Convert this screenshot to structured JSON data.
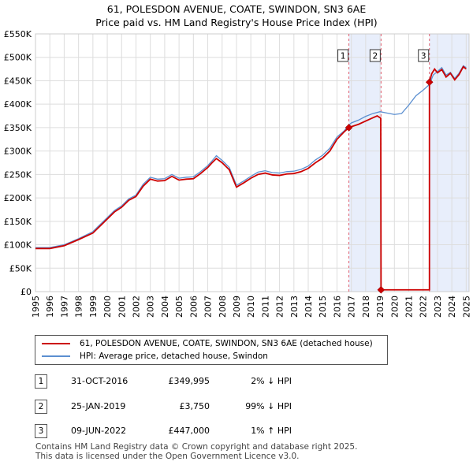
{
  "title_line1": "61, POLESDON AVENUE, COATE, SWINDON, SN3 6AE",
  "title_line2": "Price paid vs. HM Land Registry's House Price Index (HPI)",
  "chart_data": {
    "type": "line",
    "title": "61, POLESDON AVENUE, COATE, SWINDON, SN3 6AE — Price paid vs. HM Land Registry's House Price Index (HPI)",
    "xlim": [
      1995,
      2025.2
    ],
    "ylim": [
      0,
      550000
    ],
    "y_ticks": [
      0,
      50000,
      100000,
      150000,
      200000,
      250000,
      300000,
      350000,
      400000,
      450000,
      500000,
      550000
    ],
    "y_tick_labels": [
      "£0",
      "£50K",
      "£100K",
      "£150K",
      "£200K",
      "£250K",
      "£300K",
      "£350K",
      "£400K",
      "£450K",
      "£500K",
      "£550K"
    ],
    "x_tick_labels": [
      "1995",
      "1996",
      "1997",
      "1998",
      "1999",
      "2000",
      "2001",
      "2002",
      "2003",
      "2004",
      "2005",
      "2006",
      "2007",
      "2008",
      "2009",
      "2010",
      "2011",
      "2012",
      "2013",
      "2014",
      "2015",
      "2016",
      "2017",
      "2018",
      "2019",
      "2020",
      "2021",
      "2022",
      "2023",
      "2024",
      "2025"
    ],
    "grid": true,
    "series": [
      {
        "name": "61, POLESDON AVENUE, COATE, SWINDON, SN3 6AE (detached house)",
        "color": "#cc0000",
        "points": [
          [
            1995.0,
            92000
          ],
          [
            1996.0,
            92000
          ],
          [
            1997.0,
            98000
          ],
          [
            1998.0,
            111000
          ],
          [
            1999.0,
            125000
          ],
          [
            2000.0,
            155000
          ],
          [
            2000.5,
            170000
          ],
          [
            2001.0,
            180000
          ],
          [
            2001.5,
            195000
          ],
          [
            2002.0,
            203000
          ],
          [
            2002.5,
            225000
          ],
          [
            2003.0,
            240000
          ],
          [
            2003.5,
            236000
          ],
          [
            2004.0,
            237000
          ],
          [
            2004.5,
            246000
          ],
          [
            2005.0,
            238000
          ],
          [
            2005.5,
            240000
          ],
          [
            2006.0,
            241000
          ],
          [
            2006.5,
            252000
          ],
          [
            2007.0,
            265000
          ],
          [
            2007.3,
            275000
          ],
          [
            2007.6,
            284000
          ],
          [
            2008.0,
            275000
          ],
          [
            2008.5,
            260000
          ],
          [
            2009.0,
            223000
          ],
          [
            2009.5,
            232000
          ],
          [
            2010.0,
            242000
          ],
          [
            2010.5,
            250000
          ],
          [
            2011.0,
            253000
          ],
          [
            2011.5,
            249000
          ],
          [
            2012.0,
            248000
          ],
          [
            2012.5,
            251000
          ],
          [
            2013.0,
            252000
          ],
          [
            2013.5,
            256000
          ],
          [
            2014.0,
            263000
          ],
          [
            2014.5,
            275000
          ],
          [
            2015.0,
            285000
          ],
          [
            2015.5,
            300000
          ],
          [
            2016.0,
            325000
          ],
          [
            2016.5,
            341000
          ],
          [
            2016.83,
            349995
          ],
          [
            2017.0,
            352000
          ],
          [
            2017.5,
            357000
          ],
          [
            2018.0,
            364000
          ],
          [
            2018.5,
            371000
          ],
          [
            2018.8,
            375000
          ],
          [
            2019.05,
            370000
          ],
          [
            2019.07,
            3750
          ],
          [
            2022.44,
            3750
          ],
          [
            2022.44,
            447000
          ],
          [
            2022.6,
            465000
          ],
          [
            2022.8,
            475000
          ],
          [
            2023.0,
            467000
          ],
          [
            2023.3,
            474000
          ],
          [
            2023.6,
            458000
          ],
          [
            2023.9,
            466000
          ],
          [
            2024.2,
            452000
          ],
          [
            2024.5,
            463000
          ],
          [
            2024.8,
            480000
          ],
          [
            2025.0,
            475000
          ]
        ]
      },
      {
        "name": "HPI: Average price, detached house, Swindon",
        "color": "#5b8fd0",
        "points": [
          [
            1995.0,
            94000
          ],
          [
            1996.0,
            94000
          ],
          [
            1997.0,
            100000
          ],
          [
            1998.0,
            113000
          ],
          [
            1999.0,
            128000
          ],
          [
            2000.0,
            158000
          ],
          [
            2000.5,
            173000
          ],
          [
            2001.0,
            183000
          ],
          [
            2001.5,
            198000
          ],
          [
            2002.0,
            206000
          ],
          [
            2002.5,
            229000
          ],
          [
            2003.0,
            244000
          ],
          [
            2003.5,
            240000
          ],
          [
            2004.0,
            241000
          ],
          [
            2004.5,
            250000
          ],
          [
            2005.0,
            242000
          ],
          [
            2005.5,
            244000
          ],
          [
            2006.0,
            245000
          ],
          [
            2006.5,
            256000
          ],
          [
            2007.0,
            269000
          ],
          [
            2007.3,
            279000
          ],
          [
            2007.6,
            290000
          ],
          [
            2008.0,
            280000
          ],
          [
            2008.5,
            265000
          ],
          [
            2009.0,
            227000
          ],
          [
            2009.5,
            236000
          ],
          [
            2010.0,
            246000
          ],
          [
            2010.5,
            255000
          ],
          [
            2011.0,
            258000
          ],
          [
            2011.5,
            254000
          ],
          [
            2012.0,
            253000
          ],
          [
            2012.5,
            256000
          ],
          [
            2013.0,
            257000
          ],
          [
            2013.5,
            261000
          ],
          [
            2014.0,
            268000
          ],
          [
            2014.5,
            281000
          ],
          [
            2015.0,
            291000
          ],
          [
            2015.5,
            306000
          ],
          [
            2016.0,
            330000
          ],
          [
            2016.5,
            343000
          ],
          [
            2016.83,
            355000
          ],
          [
            2017.0,
            360000
          ],
          [
            2017.5,
            366000
          ],
          [
            2018.0,
            374000
          ],
          [
            2018.5,
            380000
          ],
          [
            2019.0,
            384000
          ],
          [
            2019.5,
            381000
          ],
          [
            2020.0,
            378000
          ],
          [
            2020.5,
            380000
          ],
          [
            2021.0,
            398000
          ],
          [
            2021.5,
            418000
          ],
          [
            2022.0,
            430000
          ],
          [
            2022.44,
            442000
          ],
          [
            2022.7,
            462000
          ],
          [
            2023.0,
            470000
          ],
          [
            2023.3,
            478000
          ],
          [
            2023.6,
            462000
          ],
          [
            2023.9,
            468000
          ],
          [
            2024.2,
            455000
          ],
          [
            2024.5,
            466000
          ],
          [
            2024.8,
            482000
          ],
          [
            2025.0,
            478000
          ]
        ]
      }
    ],
    "transactions": [
      {
        "num": "1",
        "x": 2016.83,
        "price": 349995
      },
      {
        "num": "2",
        "x": 2019.07,
        "price": 3750
      },
      {
        "num": "3",
        "x": 2022.44,
        "price": 447000
      }
    ],
    "shaded_ranges": [
      [
        2016.83,
        2019.07
      ],
      [
        2022.44,
        2025.2
      ]
    ]
  },
  "legend": {
    "property_label": "61, POLESDON AVENUE, COATE, SWINDON, SN3 6AE (detached house)",
    "hpi_label": "HPI: Average price, detached house, Swindon",
    "property_color": "#cc0000",
    "hpi_color": "#5b8fd0"
  },
  "transactions_table": [
    {
      "num": "1",
      "date": "31-OCT-2016",
      "price": "£349,995",
      "hpi": "2% ↓ HPI"
    },
    {
      "num": "2",
      "date": "25-JAN-2019",
      "price": "£3,750",
      "hpi": "99% ↓ HPI"
    },
    {
      "num": "3",
      "date": "09-JUN-2022",
      "price": "£447,000",
      "hpi": "1% ↑ HPI"
    }
  ],
  "footer_line1": "Contains HM Land Registry data © Crown copyright and database right 2025.",
  "footer_line2": "This data is licensed under the Open Government Licence v3.0."
}
